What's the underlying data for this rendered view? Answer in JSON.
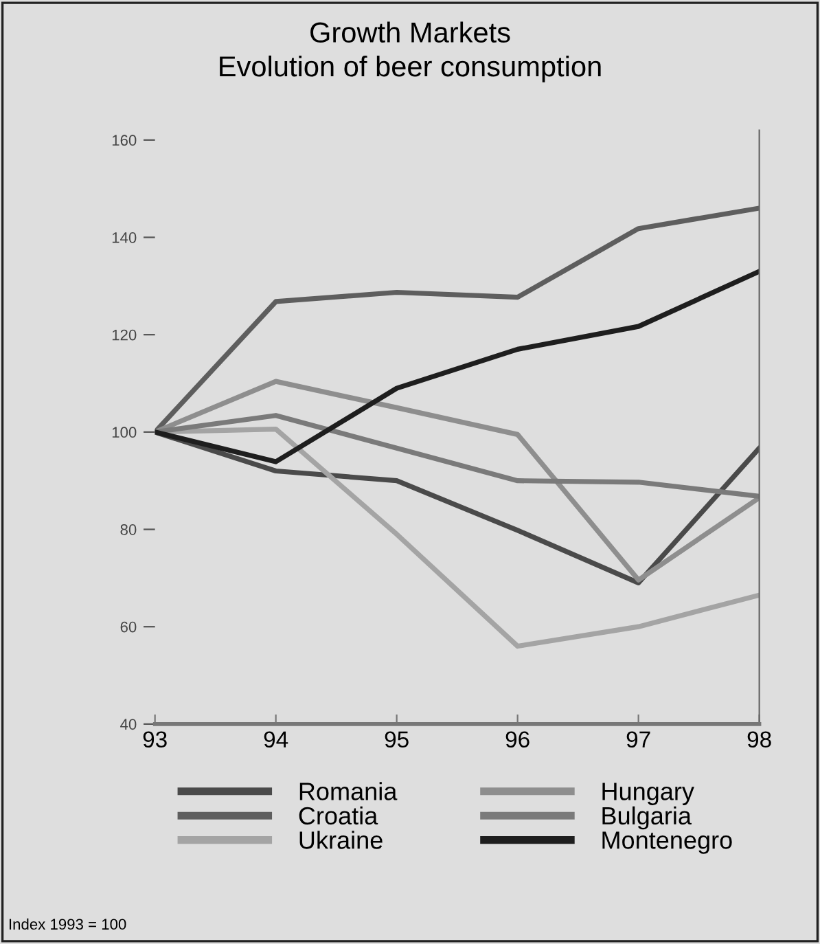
{
  "chart_data": {
    "type": "line",
    "title": "Growth Markets",
    "subtitle": "Evolution of beer consumption",
    "categories": [
      "93",
      "94",
      "95",
      "96",
      "97",
      "98"
    ],
    "series": [
      {
        "name": "Romania",
        "color": "#4a4a4a",
        "values": [
          100,
          92,
          90,
          79.8,
          69,
          96.7
        ]
      },
      {
        "name": "Croatia",
        "color": "#5e5e5e",
        "values": [
          100,
          126.8,
          128.7,
          127.7,
          141.8,
          146
        ]
      },
      {
        "name": "Ukraine",
        "color": "#a4a4a4",
        "values": [
          100,
          100.6,
          79,
          56,
          60,
          66.5
        ]
      },
      {
        "name": "Hungary",
        "color": "#8e8e8e",
        "values": [
          100,
          110.4,
          105,
          99.5,
          69.6,
          86.5
        ]
      },
      {
        "name": "Bulgaria",
        "color": "#7a7a7a",
        "values": [
          100,
          103.4,
          96.7,
          90,
          89.7,
          86.8
        ]
      },
      {
        "name": "Montenegro",
        "color": "#1e1e1e",
        "values": [
          100,
          93.9,
          109,
          117,
          121.7,
          133
        ]
      }
    ],
    "ylim": [
      40,
      162
    ],
    "yticks": [
      40,
      60,
      80,
      100,
      120,
      140,
      160
    ],
    "grid": false,
    "legend": "bottom",
    "marker": "none",
    "line_style": "solid",
    "annotations": [
      "Index 1993 = 100"
    ]
  }
}
